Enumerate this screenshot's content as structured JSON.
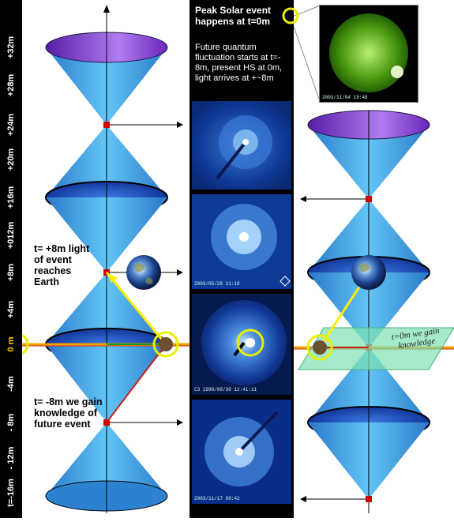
{
  "time_axis": {
    "labels": [
      "+32m",
      "+28m",
      "+24m",
      "+20m",
      "+16m",
      "+012m",
      "+8m",
      "+4m",
      "0 m",
      "-4m",
      "- 8m",
      "- 12m",
      "t=-16m"
    ]
  },
  "header": {
    "title": "Peak Solar event happens at t=0m",
    "description": "Future quantum fluctuation starts at t=- 8m, present HS at 0m, light arrives at +~8m"
  },
  "notes": {
    "light_reaches_earth": "t= +8m light of event reaches Earth",
    "gain_knowledge_future": "t= -8m we gain knowledge of future event",
    "gain_knowledge_now": "t=0m we gain knowledge"
  },
  "photos": {
    "sun_caption": "2003/11/04 19:48",
    "lasco_2_caption": "2003/05/28 11:18",
    "lasco_3_caption": "C3 1998/08/30 12:41:11",
    "lasco_4_caption": "2003/11/17 09:42"
  },
  "colors": {
    "cone": "#3da0e0",
    "cone_top": "#8a3fd0",
    "ring": "#0a2a88",
    "event_point": "#d40000",
    "light_ray": "#ffee00",
    "knowledge_ray": "#d02020",
    "present_line": "#f0a000",
    "highlight_circle": "#e8f000"
  }
}
